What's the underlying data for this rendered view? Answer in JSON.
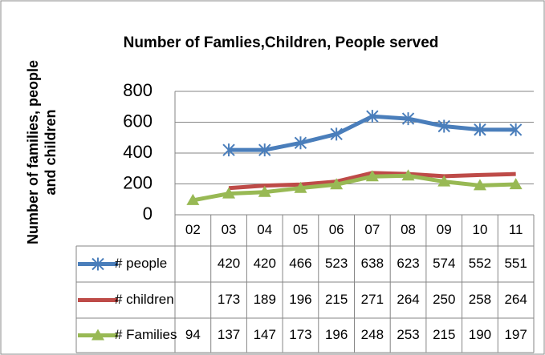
{
  "chart_data": {
    "type": "line",
    "title": "Number of Famlies,Children, People served",
    "y_label": [
      "Number of families, people",
      "and children"
    ],
    "categories": [
      "02",
      "03",
      "04",
      "05",
      "06",
      "07",
      "08",
      "09",
      "10",
      "11"
    ],
    "series": [
      {
        "name": "# people",
        "color": "#4a7ebb",
        "marker": "star",
        "values": [
          null,
          420,
          420,
          466,
          523,
          638,
          623,
          574,
          552,
          551
        ]
      },
      {
        "name": "# children",
        "color": "#be4b48",
        "marker": "none",
        "values": [
          null,
          173,
          189,
          196,
          215,
          271,
          264,
          250,
          258,
          264
        ]
      },
      {
        "name": "# Families",
        "color": "#98b954",
        "marker": "triangle",
        "values": [
          94,
          137,
          147,
          173,
          196,
          248,
          253,
          215,
          190,
          197
        ]
      }
    ],
    "ylim": [
      0,
      800
    ],
    "yticks": [
      0,
      200,
      400,
      600,
      800
    ],
    "grid": true
  }
}
